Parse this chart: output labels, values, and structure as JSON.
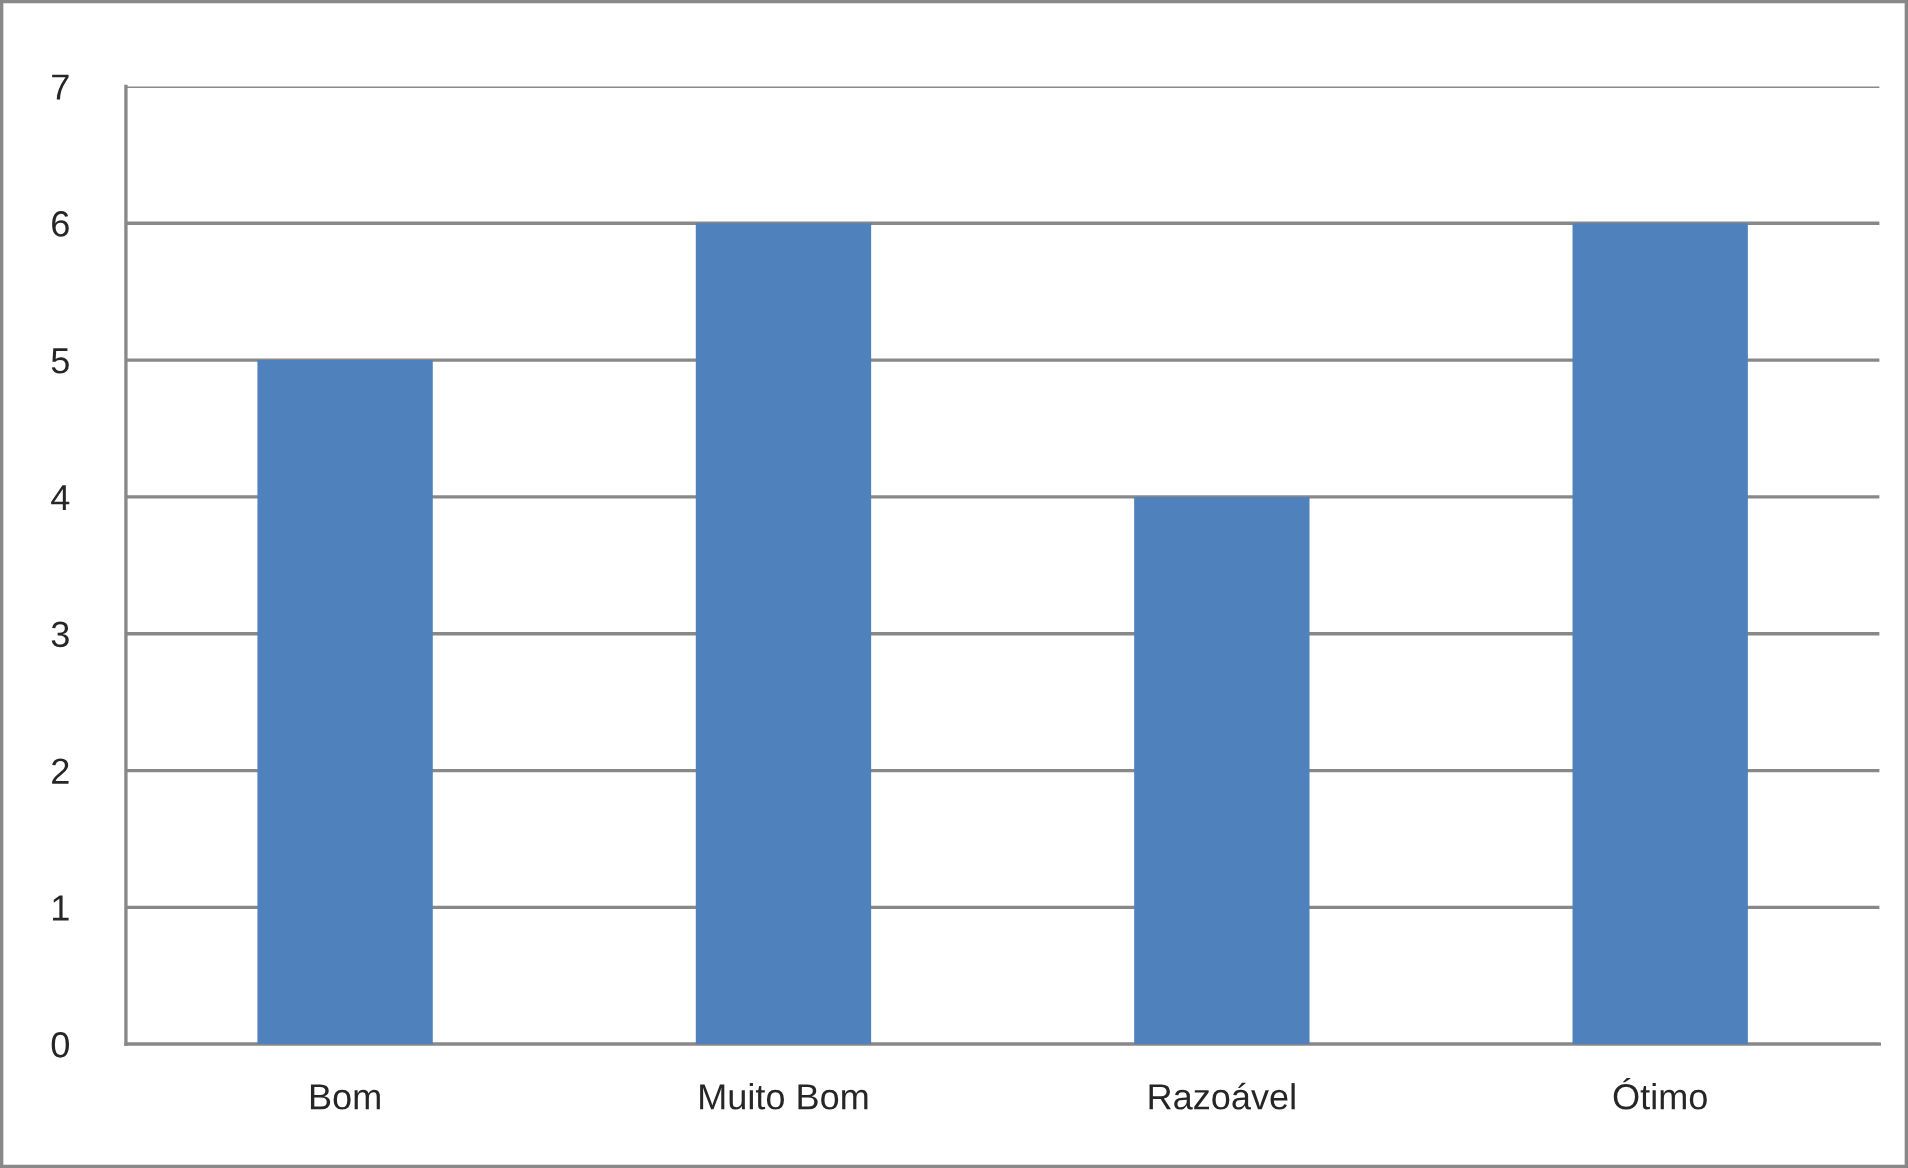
{
  "chart_data": {
    "type": "bar",
    "categories": [
      "Bom",
      "Muito Bom",
      "Razoável",
      "Ótimo"
    ],
    "values": [
      5,
      6,
      4,
      6
    ],
    "color": "#4f81bd",
    "ylim": [
      0,
      7
    ],
    "yticks": [
      0,
      1,
      2,
      3,
      4,
      5,
      6,
      7
    ],
    "grid": "y"
  }
}
